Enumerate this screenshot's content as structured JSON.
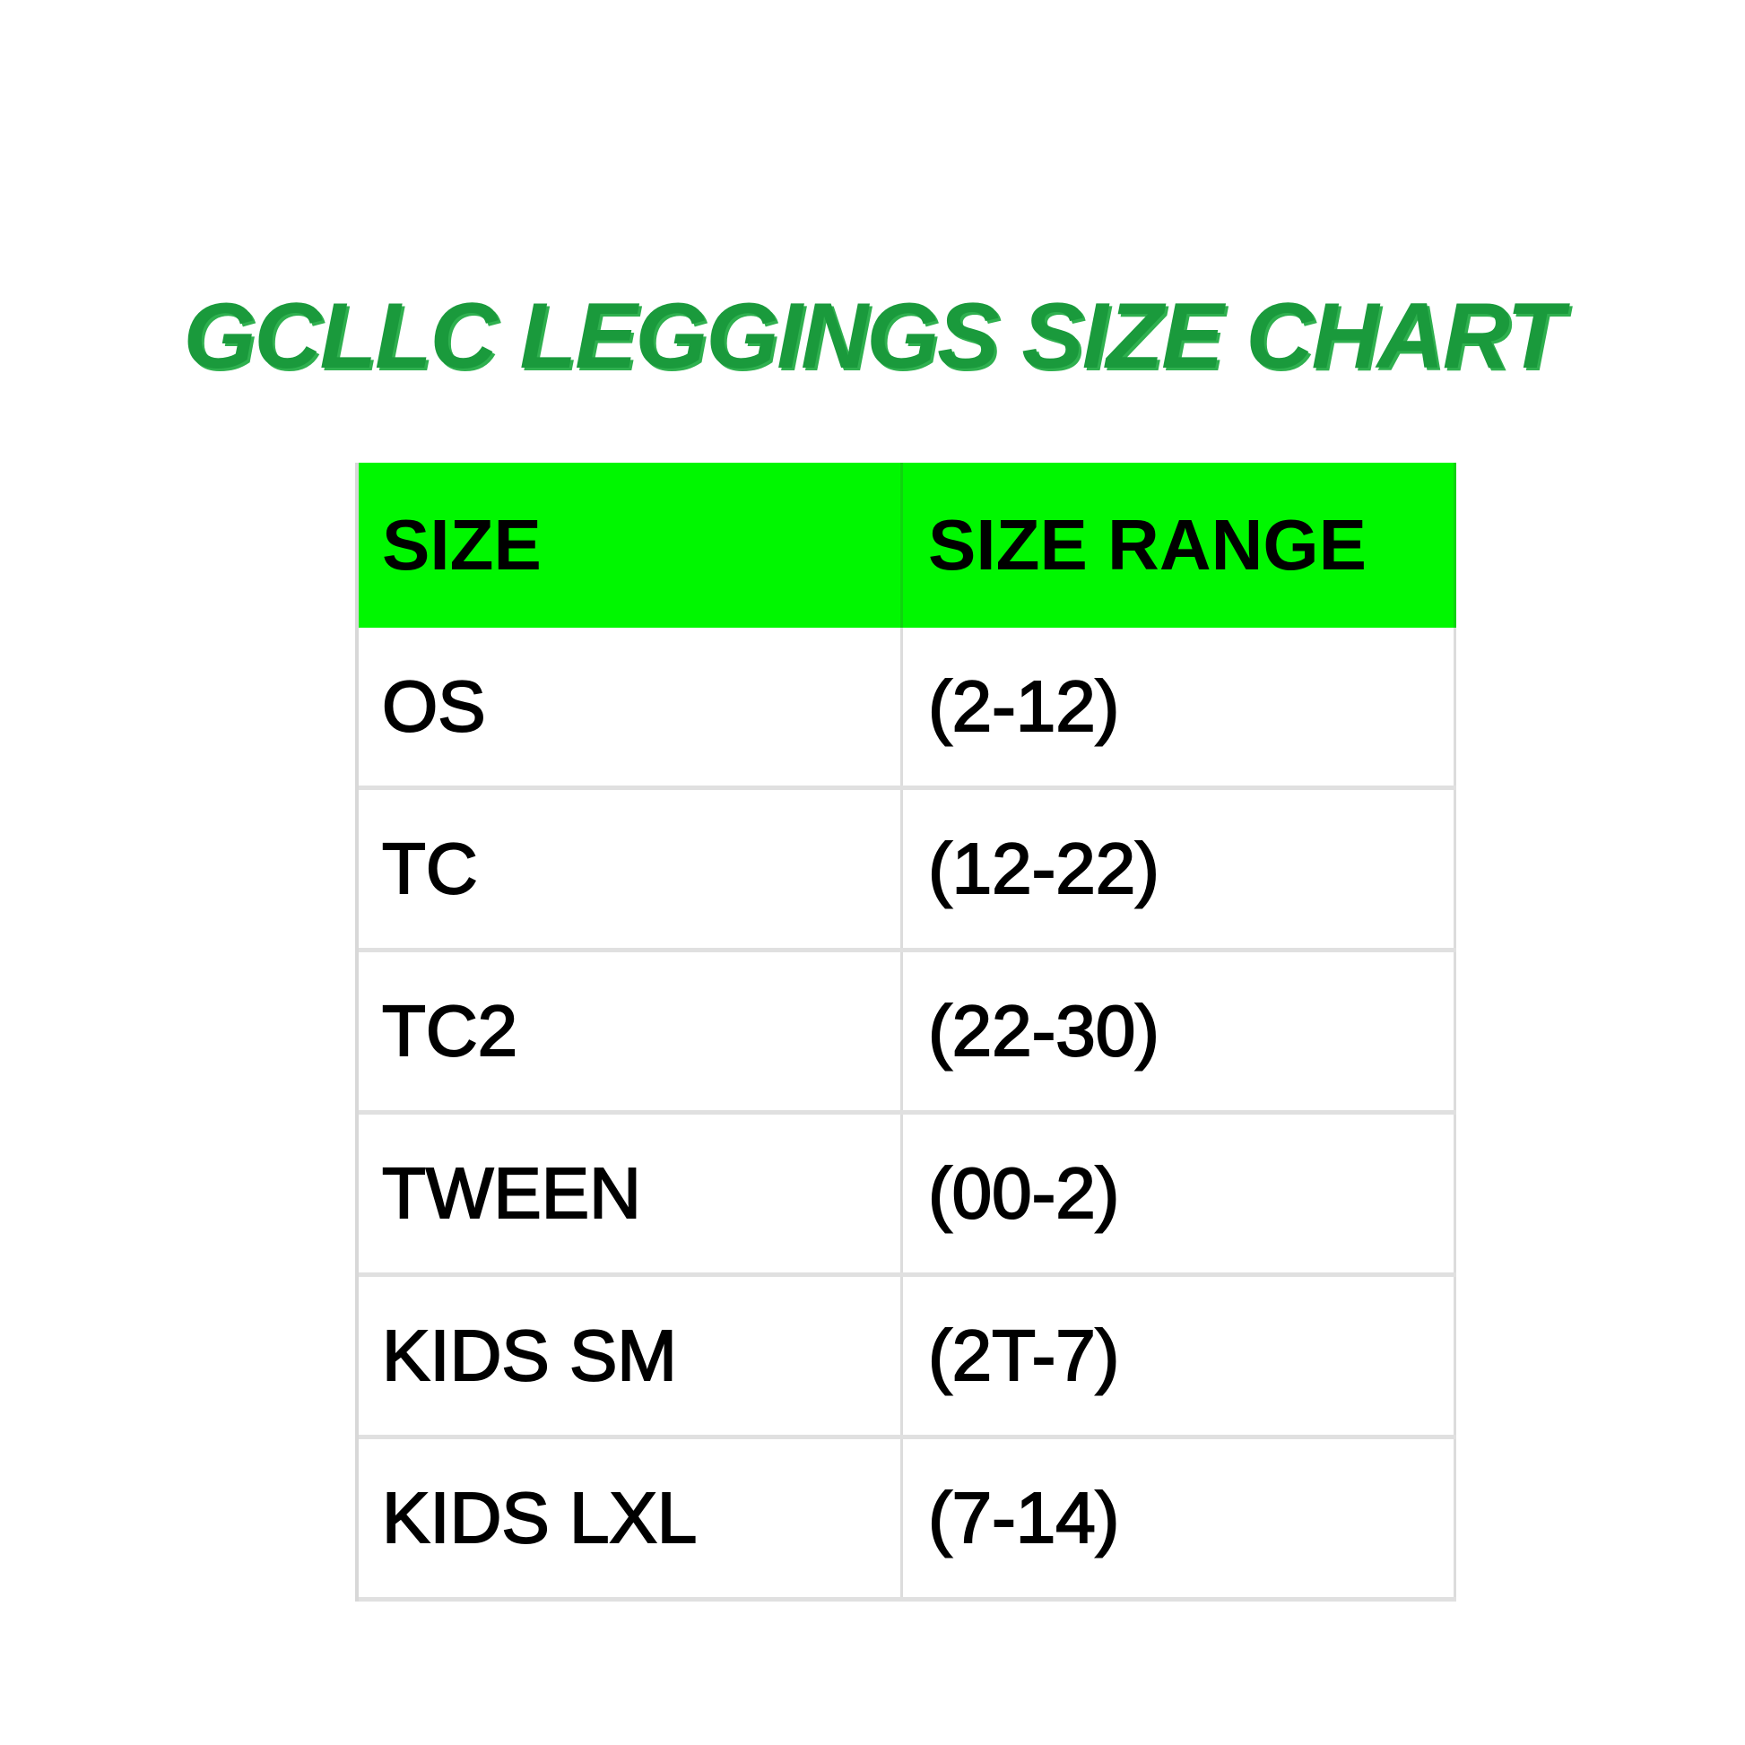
{
  "title": "GCLLC LEGGINGS SIZE CHART",
  "colors": {
    "title": "#1a9a3c",
    "header_bg": "#00f700"
  },
  "table": {
    "headers": [
      "SIZE",
      "SIZE RANGE"
    ],
    "rows": [
      [
        "OS",
        "(2-12)"
      ],
      [
        "TC",
        "(12-22)"
      ],
      [
        "TC2",
        "(22-30)"
      ],
      [
        "TWEEN",
        "(00-2)"
      ],
      [
        "KIDS SM",
        "(2T-7)"
      ],
      [
        "KIDS LXL",
        "(7-14)"
      ]
    ]
  }
}
